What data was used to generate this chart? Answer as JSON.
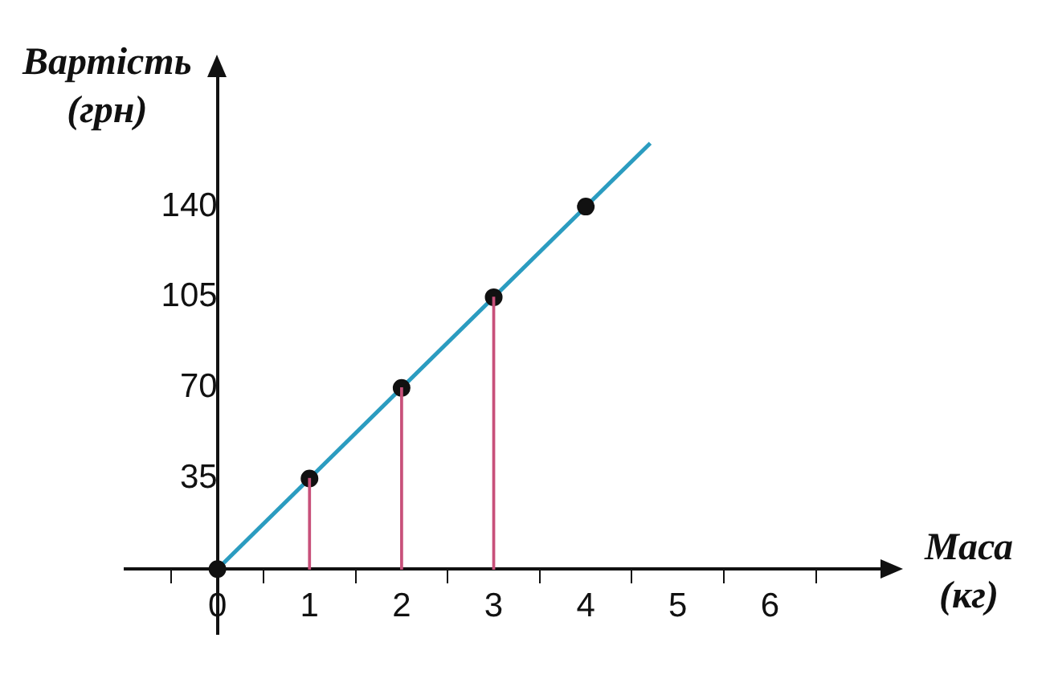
{
  "chart_data": {
    "type": "line",
    "xlabel": "Маса (кг)",
    "ylabel": "Вартість (грн)",
    "xlim": [
      -1,
      7.2
    ],
    "ylim": [
      -25,
      190
    ],
    "xticks": [
      0,
      1,
      2,
      3,
      4,
      5,
      6
    ],
    "yticks": [
      35,
      70,
      105,
      140
    ],
    "grid": false,
    "legend": false,
    "series": [
      {
        "x": [
          0,
          4.7
        ],
        "values": [
          0,
          164.5
        ],
        "color": "#2b9cc0",
        "marker": "none"
      },
      {
        "type": "scatter",
        "x": [
          0,
          1,
          2,
          3,
          4
        ],
        "values": [
          0,
          35,
          70,
          105,
          140
        ],
        "color": "#111111",
        "marker": "circle"
      },
      {
        "type": "bar",
        "x": [
          1,
          2,
          3
        ],
        "values": [
          35,
          70,
          105
        ],
        "color": "#c8507a"
      }
    ]
  }
}
